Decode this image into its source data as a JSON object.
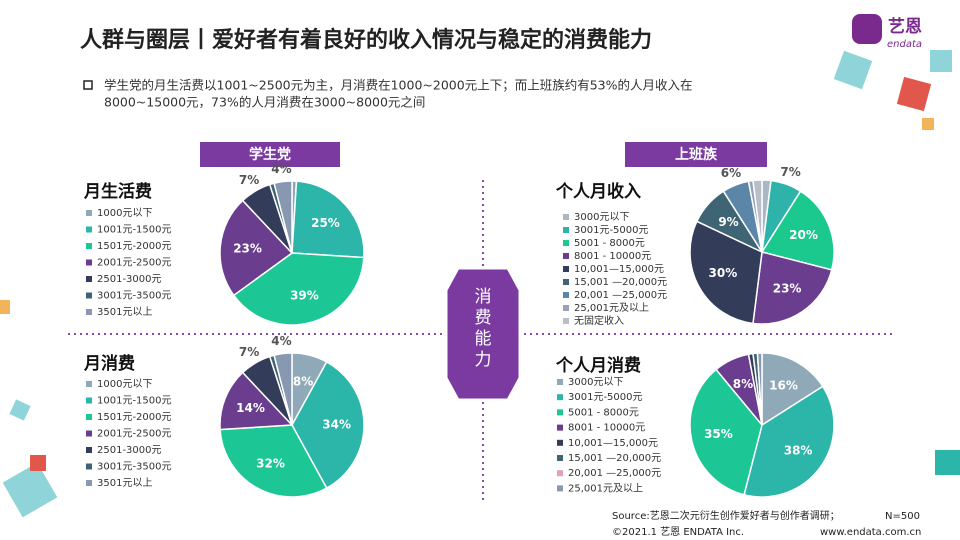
{
  "header": {
    "title": "人群与圈层丨爱好者有着良好的收入情况与稳定的消费能力",
    "logo_cn": "艺恩",
    "logo_en": "endata"
  },
  "note": {
    "lines": [
      "学生党的月生活费以1001~2500元为主，月消费在1000~2000元上下；而上班族约有53%的人月收入在",
      "8000~15000元，73%的人月消费在3000~8000元之间"
    ]
  },
  "group_labels": [
    "学生党",
    "上班族"
  ],
  "center_label": "消费能力",
  "source": {
    "text": "Source:艺恩二次元衍生创作爱好者与创作者调研；",
    "n": "N=500"
  },
  "footer": {
    "copyright": "©2021.1 艺恩 ENDATA Inc.",
    "url": "www.endata.com.cn"
  },
  "chart_data": [
    {
      "type": "pie",
      "title": "月生活费",
      "categories": [
        "1000元以下",
        "1001元-1500元",
        "1501元-2000元",
        "2001元-2500元",
        "2501-3000元",
        "3001元-3500元",
        "3501元以上"
      ],
      "values": [
        1,
        25,
        39,
        23,
        7,
        1,
        4
      ],
      "value_labels": [
        null,
        "25%",
        "39%",
        "23%",
        "7%",
        null,
        "4%"
      ],
      "colors": [
        "#8fa9b8",
        "#2cb5a9",
        "#1dc795",
        "#6a3d8f",
        "#333d59",
        "#3f6473",
        "#8898b0"
      ]
    },
    {
      "type": "pie",
      "title": "月消费",
      "categories": [
        "1000元以下",
        "1001元-1500元",
        "1501元-2000元",
        "2001元-2500元",
        "2501-3000元",
        "3001元-3500元",
        "3501元以上"
      ],
      "values": [
        8,
        34,
        32,
        14,
        7,
        1,
        4
      ],
      "value_labels": [
        "8%",
        "34%",
        "32%",
        "14%",
        "7%",
        null,
        "4%"
      ],
      "colors": [
        "#8fa9b8",
        "#2cb5a9",
        "#1dc795",
        "#6a3d8f",
        "#333d59",
        "#3f6473",
        "#8898b0"
      ]
    },
    {
      "type": "pie",
      "title": "个人月收入",
      "categories": [
        "3000元以下",
        "3001元-5000元",
        "5001 - 8000元",
        "8001 - 10000元",
        "10,001—15,000元",
        "15,001 —20,000元",
        "20,001 —25,000元",
        "25,001元及以上",
        "无固定收入"
      ],
      "values": [
        2,
        7,
        20,
        23,
        30,
        9,
        6,
        1,
        2
      ],
      "value_labels": [
        null,
        "7%",
        "20%",
        "23%",
        "30%",
        "9%",
        "6%",
        null,
        null
      ],
      "colors": [
        "#a9b8c4",
        "#2db3aa",
        "#1bc98e",
        "#6a3d8f",
        "#333d59",
        "#3f6473",
        "#5b86a8",
        "#98a2b8",
        "#b8bfc8"
      ]
    },
    {
      "type": "pie",
      "title": "个人月消费",
      "categories": [
        "3000元以下",
        "3001元-5000元",
        "5001 - 8000元",
        "8001 - 10000元",
        "10,001—15,000元",
        "15,001 —20,000元",
        "20,001 —25,000元",
        "25,001元及以上"
      ],
      "values": [
        16,
        38,
        35,
        8,
        1,
        1,
        0,
        1
      ],
      "value_labels": [
        "16%",
        "38%",
        "35%",
        "8%",
        null,
        null,
        null,
        null
      ],
      "colors": [
        "#8fa9b8",
        "#2cb5a9",
        "#1dc795",
        "#6a3d8f",
        "#333d59",
        "#3f6473",
        "#e3a0c0",
        "#8898b0"
      ]
    }
  ]
}
